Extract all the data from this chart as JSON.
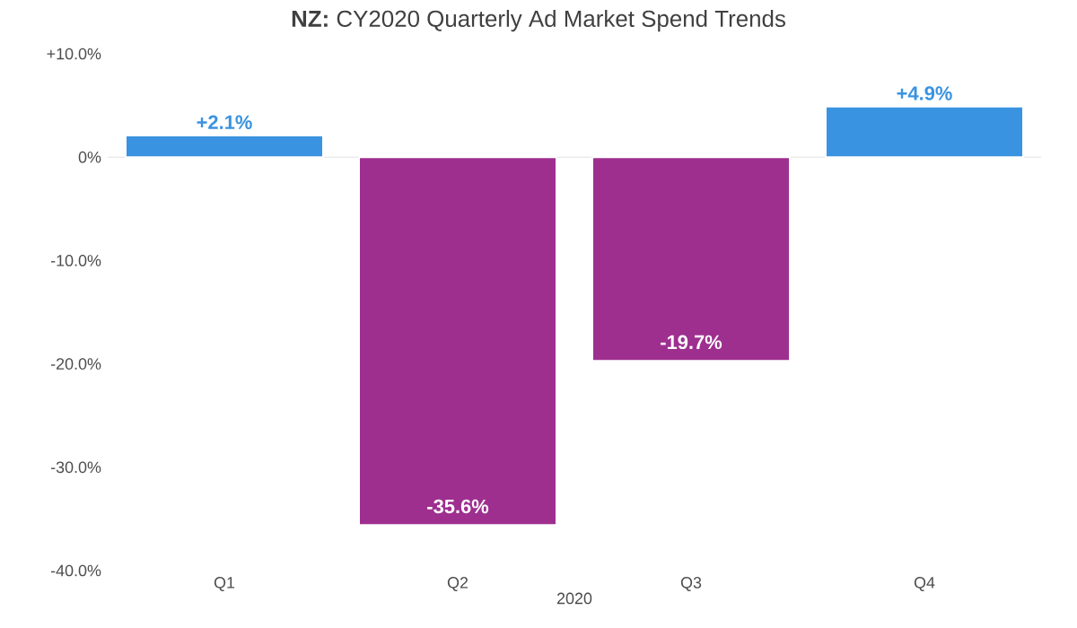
{
  "chart_data": {
    "type": "bar",
    "title": "**NZ:** CY2020 Quarterly Ad Market Spend Trends",
    "categories": [
      "Q1",
      "Q2",
      "Q3",
      "Q4"
    ],
    "values": [
      2.1,
      -35.6,
      -19.7,
      4.9
    ],
    "colors": [
      "#3a93e0",
      "#9e2f8f",
      "#9e2f8f",
      "#3a93e0"
    ],
    "value_labels": [
      "+2.1%",
      "-35.6%",
      "-19.7%",
      "+4.9%"
    ],
    "xlabel": "2020",
    "ylim": [
      -40,
      10
    ],
    "yticks": [
      {
        "value": 10,
        "label": "+10.0%"
      },
      {
        "value": 0,
        "label": "0%"
      },
      {
        "value": -10,
        "label": "-10.0%"
      },
      {
        "value": -20,
        "label": "-20.0%"
      },
      {
        "value": -30,
        "label": "-30.0%"
      },
      {
        "value": -40,
        "label": "-40.0%"
      }
    ]
  }
}
